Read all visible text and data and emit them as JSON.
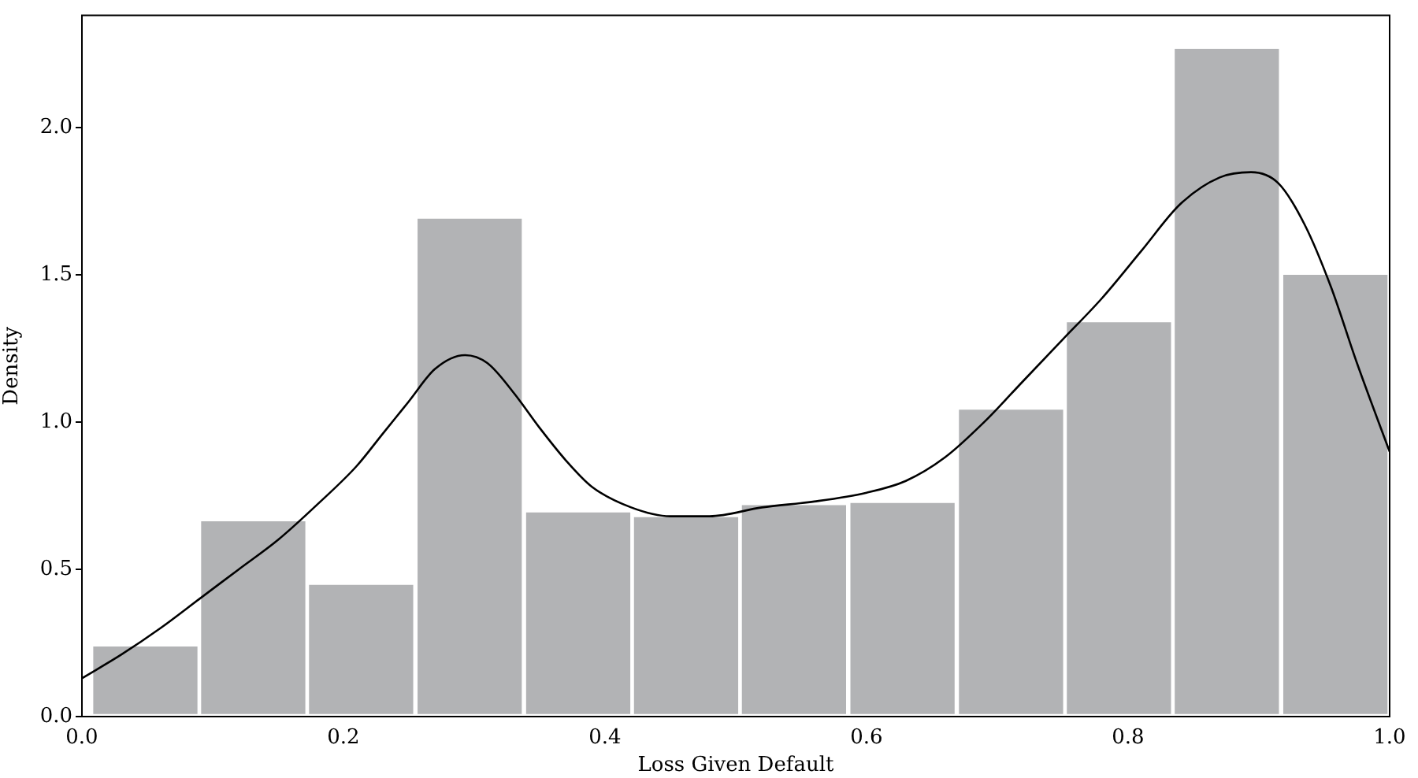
{
  "chart_data": {
    "type": "histogram",
    "xlabel": "Loss Given Default",
    "ylabel": "Density",
    "bins": [
      0.007,
      0.09,
      0.172,
      0.255,
      0.338,
      0.421,
      0.503,
      0.586,
      0.669,
      0.752,
      0.834,
      0.917,
      1.0
    ],
    "values": [
      0.244,
      0.669,
      0.453,
      1.696,
      0.699,
      0.683,
      0.724,
      0.731,
      1.048,
      1.345,
      2.273,
      1.506
    ],
    "color": "#b2b3b5",
    "series": [
      {
        "type": "line",
        "color": "#000000",
        "x": [
          0,
          0.03,
          0.06,
          0.09,
          0.12,
          0.15,
          0.18,
          0.21,
          0.23,
          0.25,
          0.27,
          0.293,
          0.31,
          0.33,
          0.35,
          0.37,
          0.39,
          0.42,
          0.45,
          0.48,
          0.52,
          0.56,
          0.6,
          0.63,
          0.66,
          0.69,
          0.72,
          0.75,
          0.78,
          0.81,
          0.84,
          0.87,
          0.894,
          0.915,
          0.935,
          0.955,
          0.975,
          1.0
        ],
        "values": [
          0.13,
          0.21,
          0.3,
          0.4,
          0.5,
          0.6,
          0.72,
          0.85,
          0.96,
          1.07,
          1.18,
          1.227,
          1.2,
          1.1,
          0.98,
          0.87,
          0.78,
          0.71,
          0.68,
          0.68,
          0.71,
          0.73,
          0.76,
          0.8,
          0.88,
          1.0,
          1.14,
          1.28,
          1.42,
          1.58,
          1.74,
          1.83,
          1.848,
          1.81,
          1.67,
          1.46,
          1.2,
          0.899
        ]
      }
    ],
    "xlim": [
      0,
      1.0
    ],
    "xticks": [
      {
        "value": 0,
        "label": "0.0"
      },
      0.2,
      0.4,
      0.6,
      0.8,
      {
        "value": 1,
        "label": "1.0"
      }
    ],
    "ylim": [
      0,
      2.38
    ],
    "yticks": [
      {
        "value": 0,
        "label": "0.0"
      },
      0.5,
      {
        "value": 1,
        "label": "1.0"
      },
      1.5,
      {
        "value": 2,
        "label": "2.0"
      }
    ],
    "marker": "none",
    "line_style": "solid"
  }
}
